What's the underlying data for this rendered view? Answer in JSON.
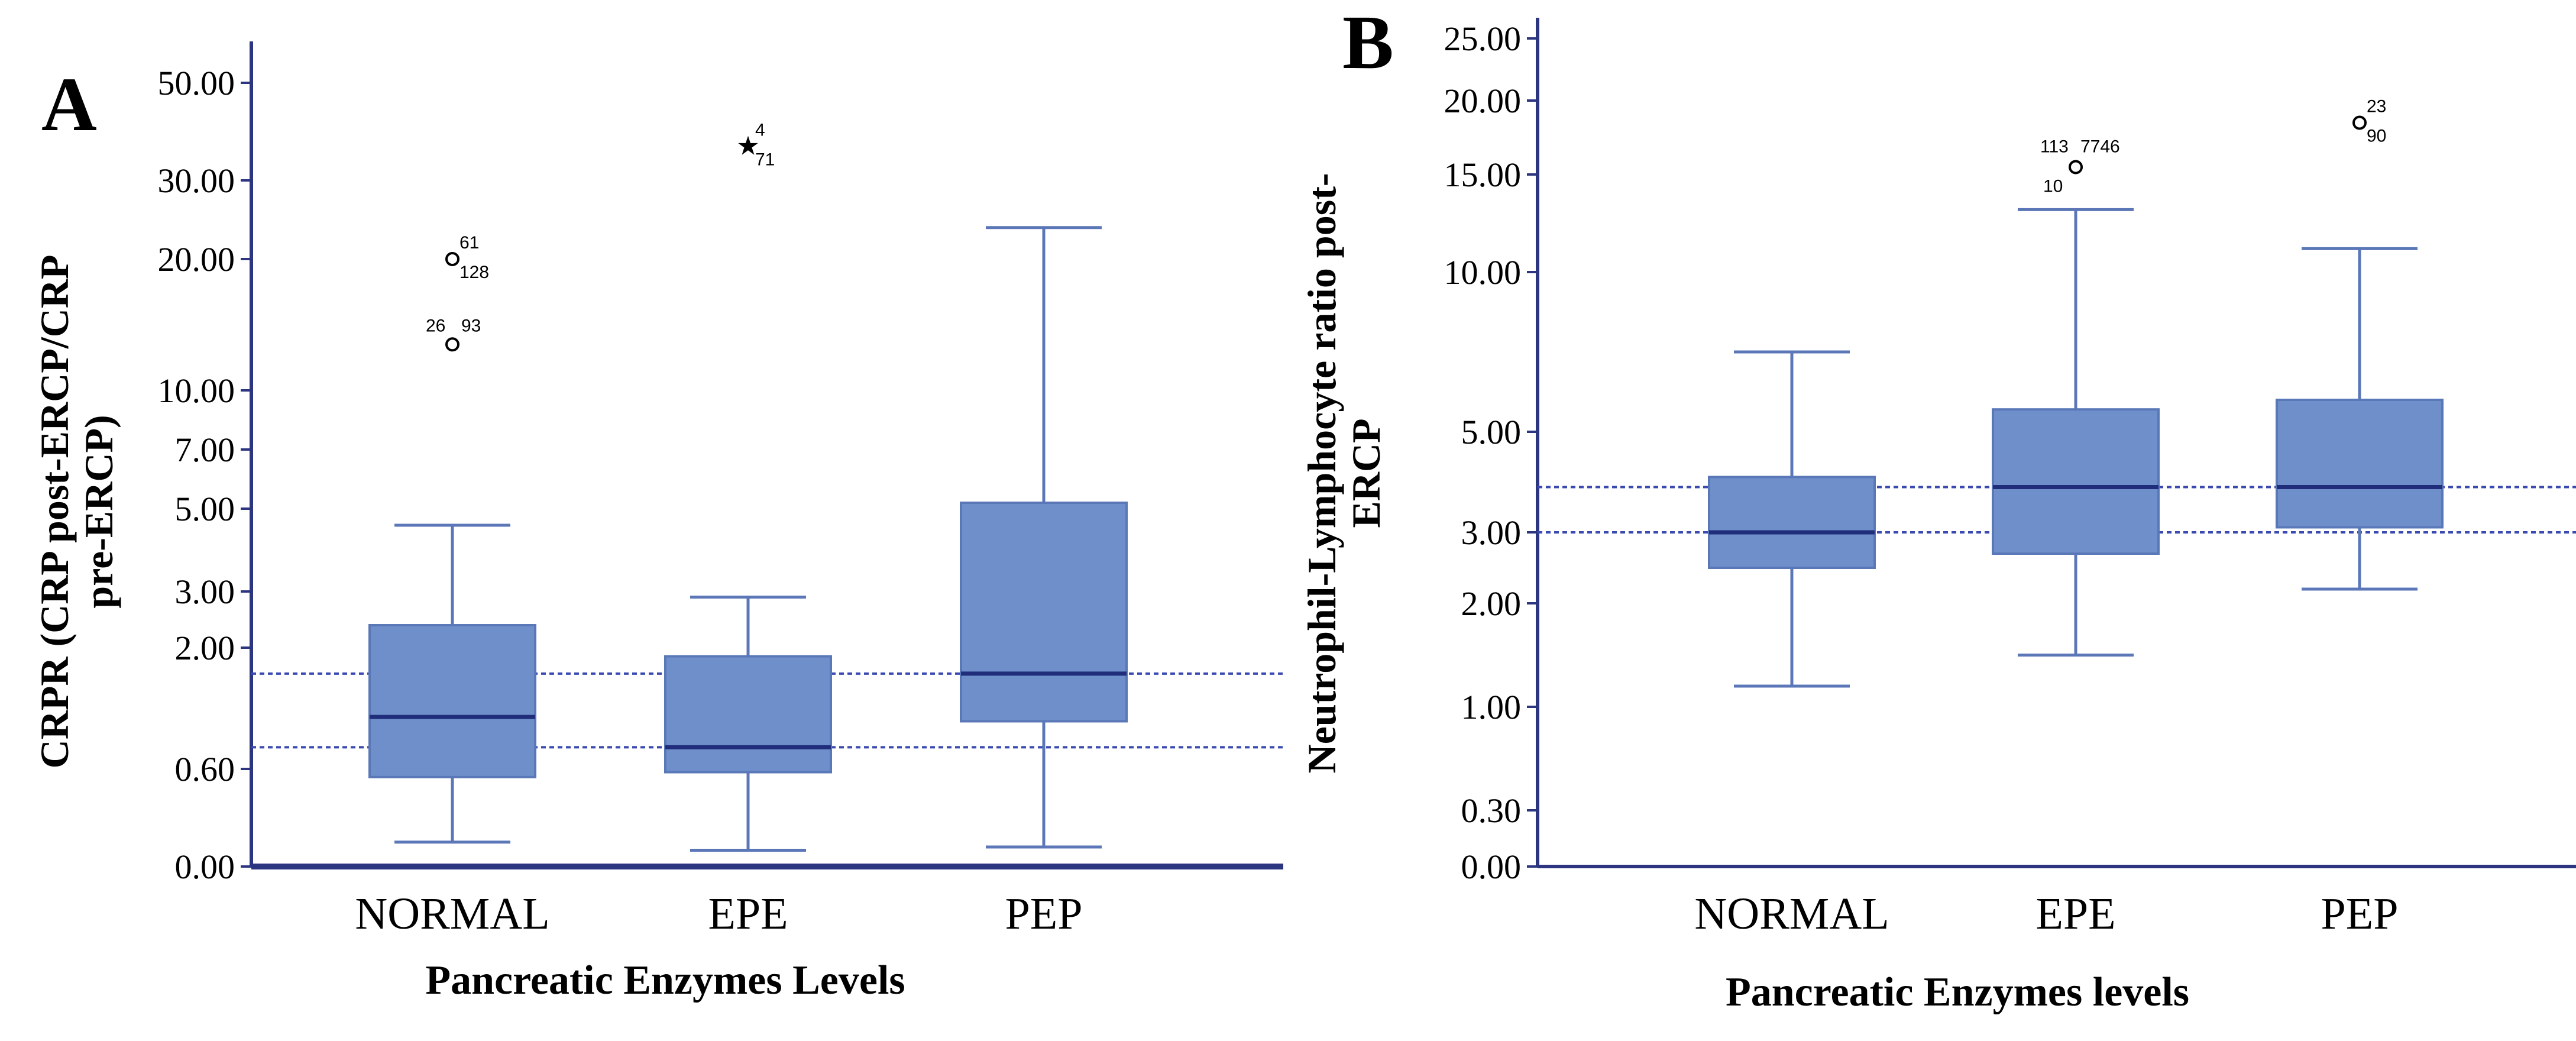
{
  "chart_data": [
    {
      "panel": "A",
      "type": "boxplot",
      "title": "",
      "xlabel": "Pancreatic Enzymes Levels",
      "ylabel": [
        "CRPR (CRP post-ERCP/CRP",
        "pre-ERCP)"
      ],
      "y_scale": "nonlinear (evenly spaced labeled ticks)",
      "yticks": [
        "0.00",
        "0.60",
        "2.00",
        "3.00",
        "5.00",
        "7.00",
        "10.00",
        "20.00",
        "30.00",
        "50.00"
      ],
      "categories": [
        "NORMAL",
        "EPE",
        "PEP"
      ],
      "boxes": [
        {
          "category": "NORMAL",
          "whisker_low": 0.15,
          "q1": 0.55,
          "median": 1.2,
          "q3": 2.4,
          "whisker_high": 4.6
        },
        {
          "category": "EPE",
          "whisker_low": 0.1,
          "q1": 0.58,
          "median": 0.85,
          "q3": 1.9,
          "whisker_high": 2.9
        },
        {
          "category": "PEP",
          "whisker_low": 0.12,
          "q1": 1.15,
          "median": 1.7,
          "q3": 5.2,
          "whisker_high": 24
        }
      ],
      "outliers": [
        {
          "category": "NORMAL",
          "value": 20,
          "symbol": "circle",
          "labels": [
            "61",
            "128"
          ]
        },
        {
          "category": "NORMAL",
          "value": 13.5,
          "symbol": "circle",
          "labels": [
            "26",
            "93"
          ]
        },
        {
          "category": "EPE",
          "value": 37,
          "symbol": "star",
          "labels": [
            "4",
            "71"
          ]
        }
      ],
      "reference_lines": [
        0.85,
        1.7
      ]
    },
    {
      "panel": "B",
      "type": "boxplot",
      "title": "",
      "xlabel": "Pancreatic Enzymes levels",
      "ylabel": [
        "Neutrophil-Lymphocyte ratio post-",
        "ERCP"
      ],
      "y_scale": "nonlinear (evenly spaced labeled ticks)",
      "yticks": [
        "0.00",
        "0.30",
        "1.00",
        "2.00",
        "3.00",
        "5.00",
        "10.00",
        "15.00",
        "20.00",
        "25.00"
      ],
      "categories": [
        "NORMAL",
        "EPE",
        "PEP"
      ],
      "boxes": [
        {
          "category": "NORMAL",
          "whisker_low": 1.2,
          "q1": 2.5,
          "median": 3.0,
          "q3": 4.1,
          "whisker_high": 7.5
        },
        {
          "category": "EPE",
          "whisker_low": 1.5,
          "q1": 2.7,
          "median": 3.9,
          "q3": 5.7,
          "whisker_high": 13.2
        },
        {
          "category": "PEP",
          "whisker_low": 2.2,
          "q1": 3.1,
          "median": 3.9,
          "q3": 6.0,
          "whisker_high": 11.2
        }
      ],
      "outliers": [
        {
          "category": "EPE",
          "value": 15.5,
          "symbol": "circle",
          "labels": [
            "113",
            "7746",
            "10"
          ]
        },
        {
          "category": "PEP",
          "value": 18.5,
          "symbol": "circle",
          "labels": [
            "23",
            "90"
          ]
        }
      ],
      "reference_lines": [
        3.0,
        3.9
      ]
    }
  ],
  "colors": {
    "box_fill": "#6f8fcb",
    "box_edge": "#5a78b8",
    "median": "#1f2d7a",
    "whisker": "#5b77b8",
    "axis": "#2c3580",
    "refline": "#3a4ab0"
  }
}
